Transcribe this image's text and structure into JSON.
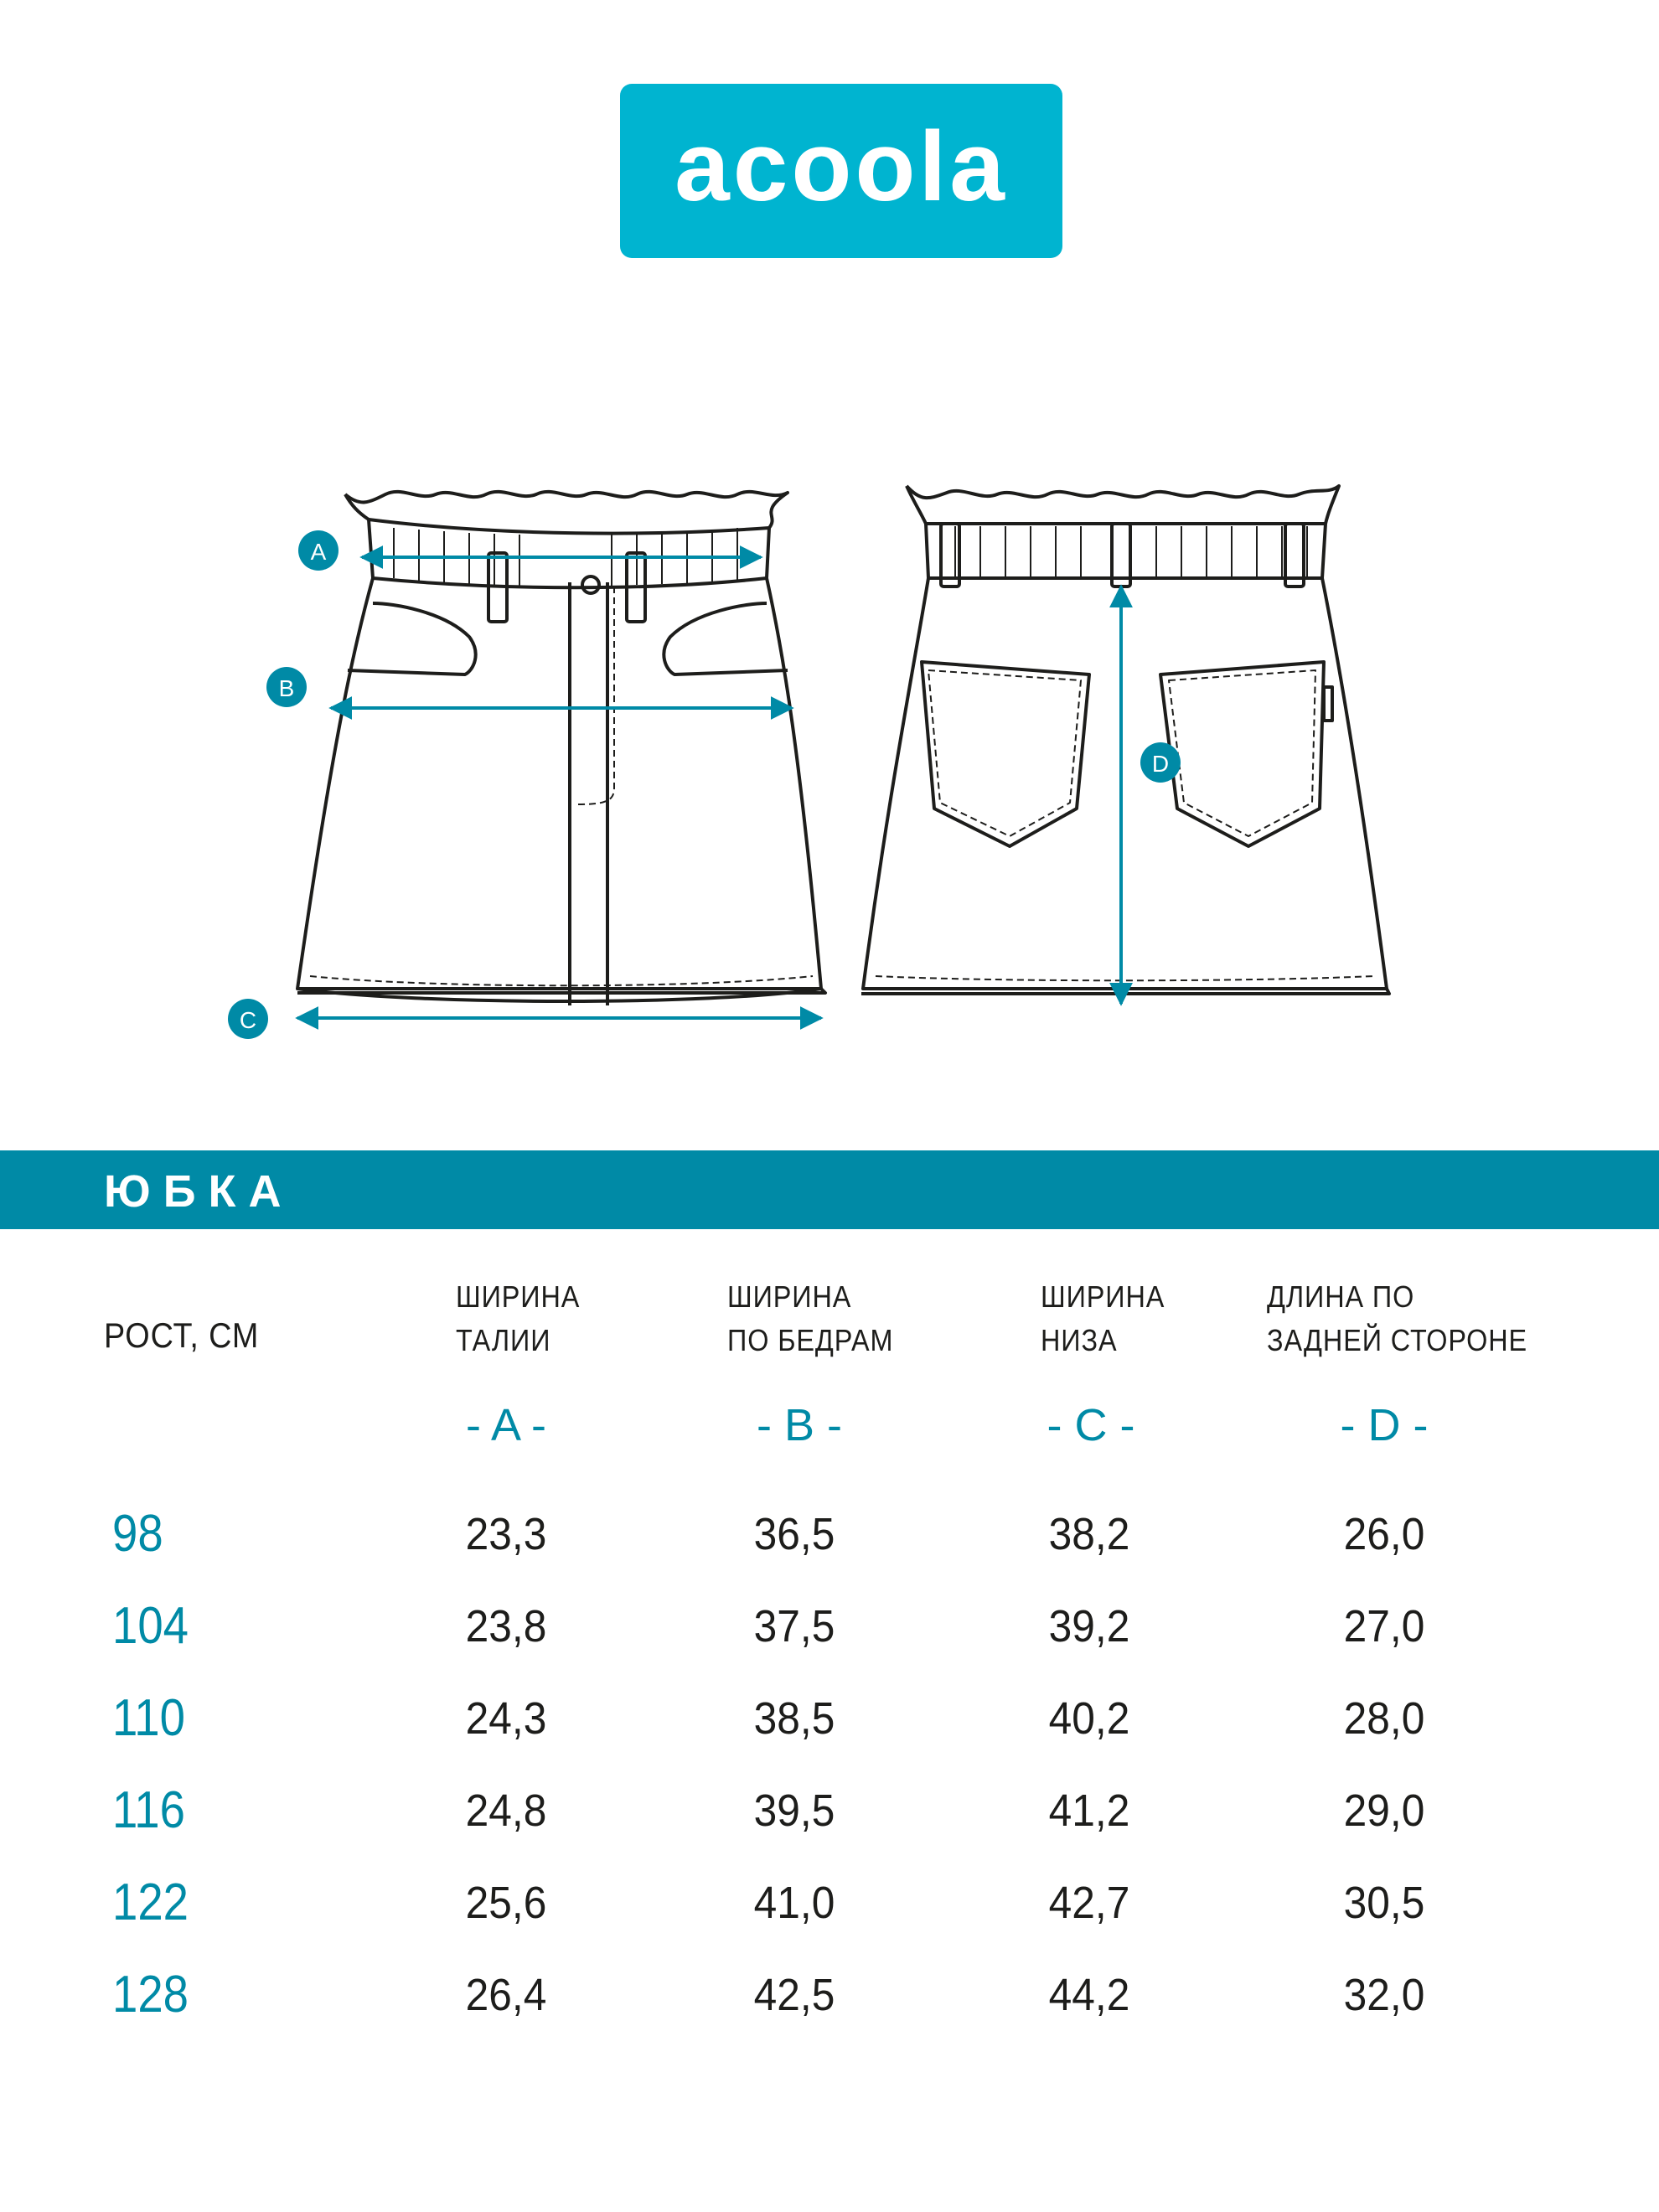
{
  "brand": {
    "logo_text": "acoola",
    "logo_color": "#00b4d0"
  },
  "diagram": {
    "markers": [
      "A",
      "B",
      "C",
      "D"
    ],
    "accent_color": "#008aa6"
  },
  "section": {
    "title": "ЮБКА",
    "banner_color": "#008aa6"
  },
  "table": {
    "size_header": "РОСТ, СМ",
    "columns": [
      {
        "label": "ШИРИНА\nТАЛИИ",
        "letter": "- A -"
      },
      {
        "label": "ШИРИНА\nПО БЕДРАМ",
        "letter": "- B -"
      },
      {
        "label": "ШИРИНА\nНИЗА",
        "letter": "- C -"
      },
      {
        "label": "ДЛИНА ПО\nЗАДНЕЙ СТОРОНЕ",
        "letter": "- D -"
      }
    ],
    "rows": [
      {
        "size": "98",
        "values": [
          "23,3",
          "36,5",
          "38,2",
          "26,0"
        ]
      },
      {
        "size": "104",
        "values": [
          "23,8",
          "37,5",
          "39,2",
          "27,0"
        ]
      },
      {
        "size": "110",
        "values": [
          "24,3",
          "38,5",
          "40,2",
          "28,0"
        ]
      },
      {
        "size": "116",
        "values": [
          "24,8",
          "39,5",
          "41,2",
          "29,0"
        ]
      },
      {
        "size": "122",
        "values": [
          "25,6",
          "41,0",
          "42,7",
          "30,5"
        ]
      },
      {
        "size": "128",
        "values": [
          "26,4",
          "42,5",
          "44,2",
          "32,0"
        ]
      }
    ]
  }
}
